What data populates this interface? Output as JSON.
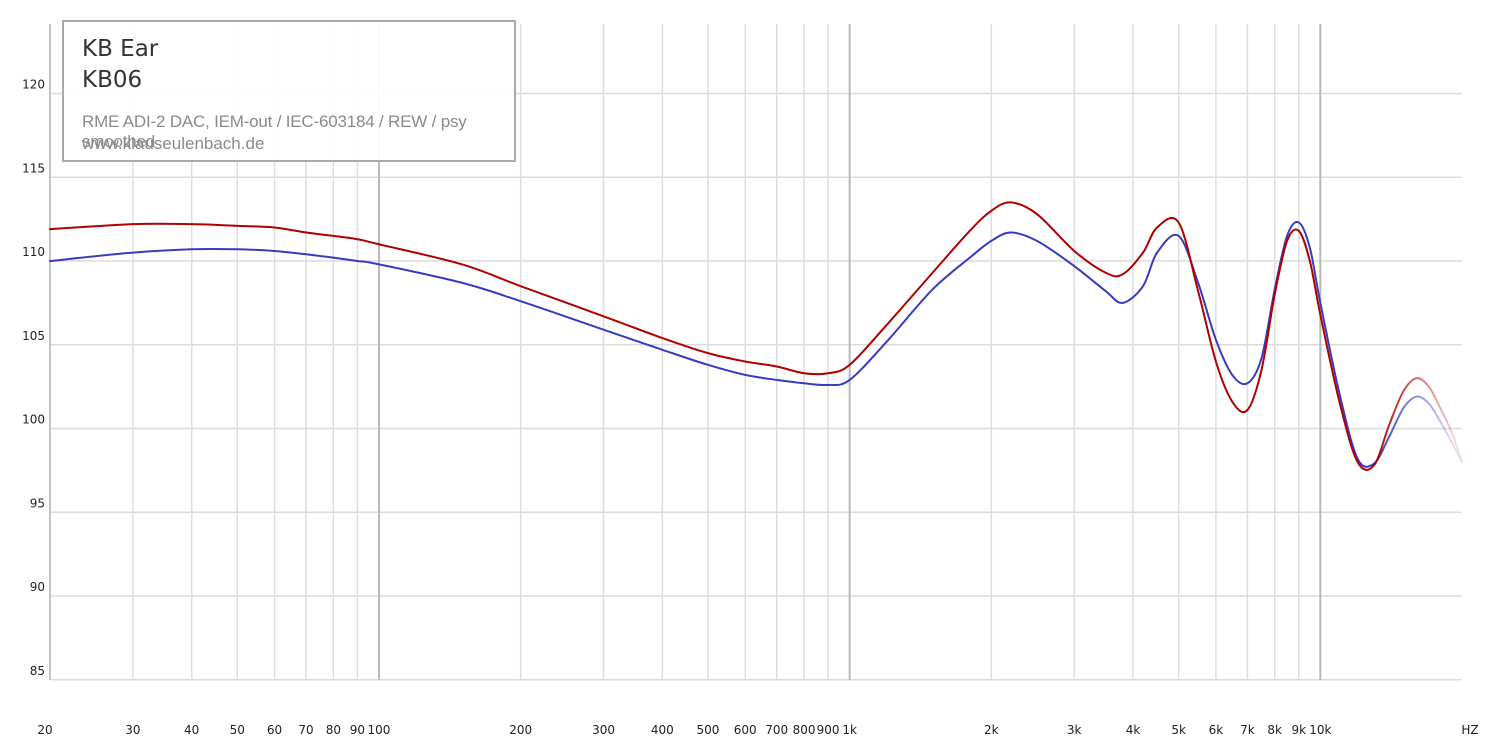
{
  "chart_data": {
    "type": "line",
    "title": "",
    "xlabel": "HZ",
    "ylabel": "",
    "x_scale": "log",
    "xlim": [
      20,
      20000
    ],
    "ylim": [
      85,
      125
    ],
    "grid": true,
    "legend_placement": "top-left",
    "legend": {
      "brand": "KB Ear",
      "model": "KB06",
      "rig": "RME ADI-2 DAC, IEM-out / IEC-603184 / REW / psy smoothed",
      "site": "www.klauseulenbach.de"
    },
    "y_ticks": [
      {
        "value": 120,
        "label": "120"
      },
      {
        "value": 115,
        "label": "115"
      },
      {
        "value": 110,
        "label": "110"
      },
      {
        "value": 105,
        "label": "105"
      },
      {
        "value": 100,
        "label": "100"
      },
      {
        "value": 95,
        "label": "95"
      },
      {
        "value": 90,
        "label": "90"
      },
      {
        "value": 85,
        "label": "85"
      }
    ],
    "x_ticks": [
      {
        "value": 20,
        "label": "20"
      },
      {
        "value": 30,
        "label": "30"
      },
      {
        "value": 40,
        "label": "40"
      },
      {
        "value": 50,
        "label": "50"
      },
      {
        "value": 60,
        "label": "60"
      },
      {
        "value": 70,
        "label": "70"
      },
      {
        "value": 80,
        "label": "80"
      },
      {
        "value": 90,
        "label": "90"
      },
      {
        "value": 100,
        "label": "100"
      },
      {
        "value": 200,
        "label": "200"
      },
      {
        "value": 300,
        "label": "300"
      },
      {
        "value": 400,
        "label": "400"
      },
      {
        "value": 500,
        "label": "500"
      },
      {
        "value": 600,
        "label": "600"
      },
      {
        "value": 700,
        "label": "700"
      },
      {
        "value": 800,
        "label": "800"
      },
      {
        "value": 900,
        "label": "900"
      },
      {
        "value": 1000,
        "label": "1k"
      },
      {
        "value": 2000,
        "label": "2k"
      },
      {
        "value": 3000,
        "label": "3k"
      },
      {
        "value": 4000,
        "label": "4k"
      },
      {
        "value": 5000,
        "label": "5k"
      },
      {
        "value": 6000,
        "label": "6k"
      },
      {
        "value": 7000,
        "label": "7k"
      },
      {
        "value": 8000,
        "label": "8k"
      },
      {
        "value": 9000,
        "label": "9k"
      },
      {
        "value": 10000,
        "label": "10k"
      }
    ],
    "series": [
      {
        "color": "#b00000",
        "x": [
          20,
          30,
          40,
          50,
          60,
          70,
          80,
          90,
          100,
          150,
          200,
          300,
          400,
          500,
          600,
          700,
          800,
          900,
          1000,
          1200,
          1500,
          1800,
          2000,
          2200,
          2500,
          3000,
          3500,
          3800,
          4200,
          4500,
          5000,
          5500,
          6000,
          6500,
          7000,
          7500,
          8000,
          8500,
          9000,
          9500,
          10000,
          11000,
          12000,
          13000,
          14000,
          15000,
          16000,
          17000,
          18000,
          19000,
          20000
        ],
        "y": [
          111.9,
          112.2,
          112.2,
          112.1,
          112.0,
          111.7,
          111.5,
          111.3,
          111.0,
          109.8,
          108.5,
          106.7,
          105.4,
          104.5,
          104.0,
          103.7,
          103.3,
          103.3,
          103.8,
          106.2,
          109.3,
          111.8,
          113.0,
          113.5,
          112.8,
          110.6,
          109.3,
          109.2,
          110.5,
          112.0,
          112.3,
          108.2,
          104.0,
          101.6,
          101.1,
          103.5,
          108.0,
          111.2,
          111.8,
          110.0,
          106.8,
          101.5,
          98.0,
          97.8,
          100.2,
          102.2,
          103.0,
          102.5,
          101.2,
          99.8,
          98.0
        ]
      },
      {
        "color": "#3a3ac0",
        "x": [
          20,
          30,
          40,
          50,
          60,
          70,
          80,
          90,
          100,
          150,
          200,
          300,
          400,
          500,
          600,
          700,
          800,
          900,
          1000,
          1200,
          1500,
          1800,
          2000,
          2200,
          2500,
          3000,
          3500,
          3800,
          4200,
          4500,
          5000,
          5500,
          6000,
          6500,
          7000,
          7500,
          8000,
          8500,
          9000,
          9500,
          10000,
          11000,
          12000,
          13000,
          14000,
          15000,
          16000,
          17000,
          18000,
          19000,
          20000
        ],
        "y": [
          110.0,
          110.5,
          110.7,
          110.7,
          110.6,
          110.4,
          110.2,
          110.0,
          109.8,
          108.7,
          107.6,
          105.9,
          104.7,
          103.8,
          103.2,
          102.9,
          102.7,
          102.6,
          102.9,
          105.2,
          108.3,
          110.2,
          111.2,
          111.7,
          111.2,
          109.7,
          108.2,
          107.5,
          108.5,
          110.5,
          111.5,
          108.7,
          105.3,
          103.2,
          102.7,
          104.2,
          108.3,
          111.5,
          112.3,
          110.8,
          107.5,
          102.0,
          98.2,
          97.9,
          99.5,
          101.2,
          101.9,
          101.5,
          100.4,
          99.2,
          98.0
        ]
      }
    ]
  }
}
